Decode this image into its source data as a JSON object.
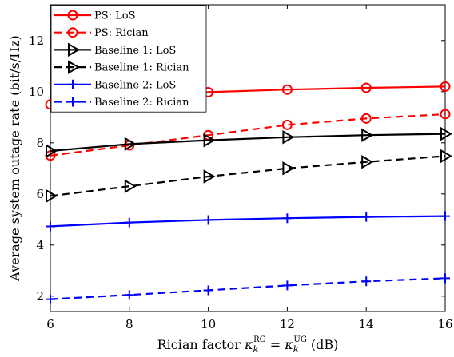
{
  "chart_data": {
    "type": "line",
    "xlabel_prefix": "Rician factor ",
    "xlabel_math_base1": "κ",
    "xlabel_sub1": "k",
    "xlabel_sup1": "RG",
    "xlabel_eq": " = ",
    "xlabel_math_base2": "κ",
    "xlabel_sub2": "k",
    "xlabel_sup2": "UG",
    "xlabel_unit": "  (dB)",
    "ylabel": "Average system outage rate (bit/s/Hz)",
    "x": [
      6,
      8,
      10,
      12,
      14,
      16
    ],
    "xlim": [
      6,
      16
    ],
    "ylim": [
      1.4,
      13.4
    ],
    "xticks": [
      6,
      8,
      10,
      12,
      14,
      16
    ],
    "yticks": [
      2,
      4,
      6,
      8,
      10,
      12
    ],
    "grid": false,
    "legend_position": "top-left",
    "series": [
      {
        "name": "PS: LoS",
        "values": [
          9.5,
          9.75,
          9.98,
          10.08,
          10.15,
          10.2
        ],
        "color": "#ff0000",
        "dash": "solid",
        "marker": "circle"
      },
      {
        "name": "PS: Rician",
        "values": [
          7.5,
          7.9,
          8.3,
          8.7,
          8.95,
          9.12
        ],
        "color": "#ff0000",
        "dash": "dashed",
        "marker": "circle"
      },
      {
        "name": "Baseline 1: LoS",
        "values": [
          7.68,
          7.95,
          8.1,
          8.22,
          8.3,
          8.35
        ],
        "color": "#000000",
        "dash": "solid",
        "marker": "triangle-right"
      },
      {
        "name": "Baseline 1: Rician",
        "values": [
          5.92,
          6.3,
          6.68,
          7.0,
          7.25,
          7.48
        ],
        "color": "#000000",
        "dash": "dashed",
        "marker": "triangle-right"
      },
      {
        "name": "Baseline 2: LoS",
        "values": [
          4.73,
          4.88,
          4.98,
          5.05,
          5.1,
          5.13
        ],
        "color": "#0000ff",
        "dash": "solid",
        "marker": "plus"
      },
      {
        "name": "Baseline 2: Rician",
        "values": [
          1.88,
          2.05,
          2.23,
          2.42,
          2.58,
          2.7
        ],
        "color": "#0000ff",
        "dash": "dashed",
        "marker": "plus"
      }
    ]
  }
}
